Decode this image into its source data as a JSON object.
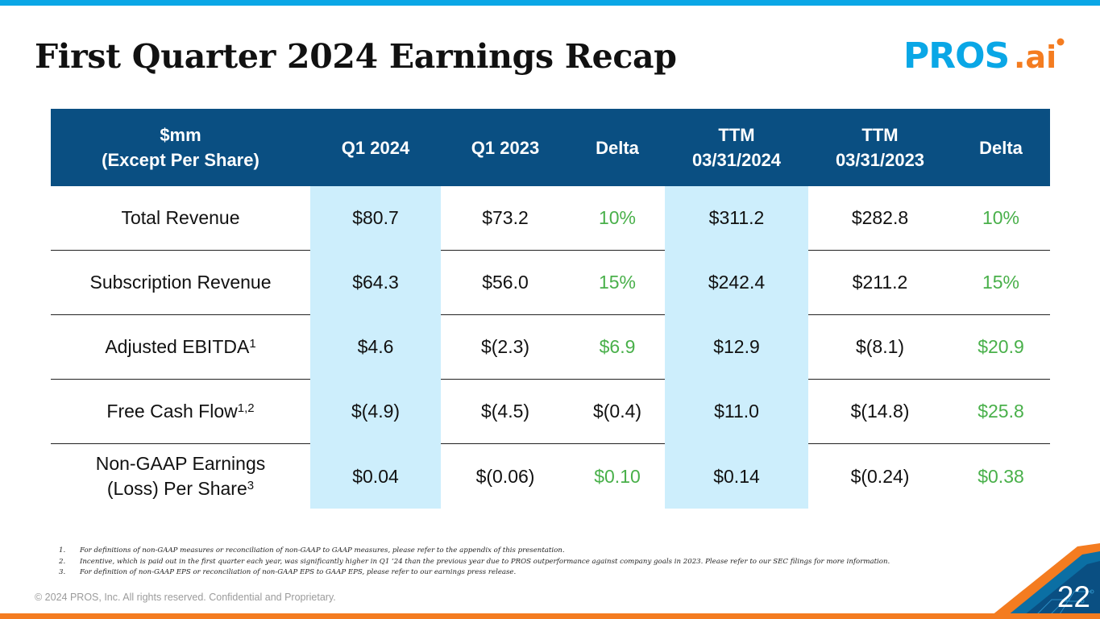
{
  "slide": {
    "title": "First Quarter 2024 Earnings Recap",
    "logo_text_main": "PROS",
    "logo_text_suffix": ".ai",
    "page_number": "22",
    "copyright": "© 2024 PROS, Inc. All rights reserved. Confidential and Proprietary."
  },
  "colors": {
    "header_blue": "#0a4f82",
    "highlight_blue": "#cdeefc",
    "positive_green": "#49b04a",
    "accent_orange": "#f47c20",
    "accent_cyan": "#0aa7e6"
  },
  "table": {
    "headers": [
      {
        "line1": "$mm",
        "line2": "(Except Per Share)"
      },
      {
        "line1": "Q1 2024",
        "line2": ""
      },
      {
        "line1": "Q1 2023",
        "line2": ""
      },
      {
        "line1": "Delta",
        "line2": ""
      },
      {
        "line1": "TTM",
        "line2": "03/31/2024"
      },
      {
        "line1": "TTM",
        "line2": "03/31/2023"
      },
      {
        "line1": "Delta",
        "line2": ""
      }
    ],
    "rows": [
      {
        "label": "Total Revenue",
        "label2": "",
        "sup": "",
        "cells": [
          "$80.7",
          "$73.2",
          "10%",
          "$311.2",
          "$282.8",
          "10%"
        ]
      },
      {
        "label": "Subscription Revenue",
        "label2": "",
        "sup": "",
        "cells": [
          "$64.3",
          "$56.0",
          "15%",
          "$242.4",
          "$211.2",
          "15%"
        ]
      },
      {
        "label": "Adjusted EBITDA",
        "label2": "",
        "sup": "1",
        "cells": [
          "$4.6",
          "$(2.3)",
          "$6.9",
          "$12.9",
          "$(8.1)",
          "$20.9"
        ]
      },
      {
        "label": "Free Cash Flow",
        "label2": "",
        "sup": "1,2",
        "cells": [
          "$(4.9)",
          "$(4.5)",
          "$(0.4)",
          "$11.0",
          "$(14.8)",
          "$25.8"
        ]
      },
      {
        "label": "Non-GAAP Earnings",
        "label2": "(Loss) Per Share",
        "sup": "3",
        "cells": [
          "$0.04",
          "$(0.06)",
          "$0.10",
          "$0.14",
          "$(0.24)",
          "$0.38"
        ]
      }
    ]
  },
  "footnotes": [
    {
      "num": "1.",
      "text": "For definitions of non-GAAP measures or reconciliation of non-GAAP to GAAP measures, please refer to the appendix of this presentation."
    },
    {
      "num": "2.",
      "text": "Incentive, which is paid out in the first quarter each year, was significantly higher in Q1 ’24 than the previous year due to PROS outperformance against company goals in 2023. Please refer to our SEC filings for more information."
    },
    {
      "num": "3.",
      "text": "For definition of non-GAAP EPS or reconciliation of non-GAAP EPS to GAAP EPS, please refer to our earnings press release."
    }
  ]
}
